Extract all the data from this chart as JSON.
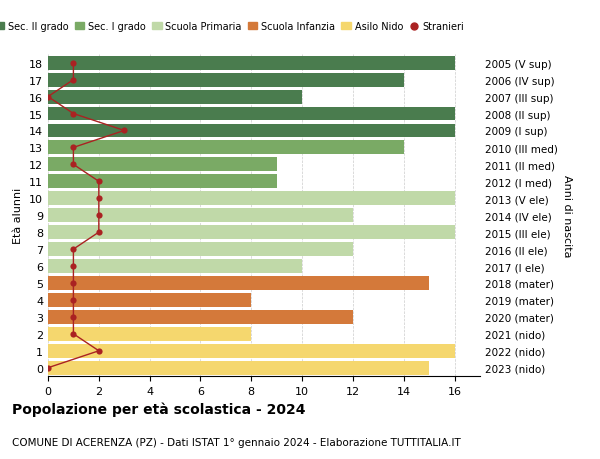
{
  "rows": [
    {
      "age": 18,
      "year": "2005 (V sup)",
      "value": 16,
      "color": "#4a7c4e",
      "stranieri": 1
    },
    {
      "age": 17,
      "year": "2006 (IV sup)",
      "value": 14,
      "color": "#4a7c4e",
      "stranieri": 1
    },
    {
      "age": 16,
      "year": "2007 (III sup)",
      "value": 10,
      "color": "#4a7c4e",
      "stranieri": 0
    },
    {
      "age": 15,
      "year": "2008 (II sup)",
      "value": 16,
      "color": "#4a7c4e",
      "stranieri": 1
    },
    {
      "age": 14,
      "year": "2009 (I sup)",
      "value": 16,
      "color": "#4a7c4e",
      "stranieri": 3
    },
    {
      "age": 13,
      "year": "2010 (III med)",
      "value": 14,
      "color": "#7aaa65",
      "stranieri": 1
    },
    {
      "age": 12,
      "year": "2011 (II med)",
      "value": 9,
      "color": "#7aaa65",
      "stranieri": 1
    },
    {
      "age": 11,
      "year": "2012 (I med)",
      "value": 9,
      "color": "#7aaa65",
      "stranieri": 2
    },
    {
      "age": 10,
      "year": "2013 (V ele)",
      "value": 16,
      "color": "#c0d9a8",
      "stranieri": 2
    },
    {
      "age": 9,
      "year": "2014 (IV ele)",
      "value": 12,
      "color": "#c0d9a8",
      "stranieri": 2
    },
    {
      "age": 8,
      "year": "2015 (III ele)",
      "value": 16,
      "color": "#c0d9a8",
      "stranieri": 2
    },
    {
      "age": 7,
      "year": "2016 (II ele)",
      "value": 12,
      "color": "#c0d9a8",
      "stranieri": 1
    },
    {
      "age": 6,
      "year": "2017 (I ele)",
      "value": 10,
      "color": "#c0d9a8",
      "stranieri": 1
    },
    {
      "age": 5,
      "year": "2018 (mater)",
      "value": 15,
      "color": "#d4793a",
      "stranieri": 1
    },
    {
      "age": 4,
      "year": "2019 (mater)",
      "value": 8,
      "color": "#d4793a",
      "stranieri": 1
    },
    {
      "age": 3,
      "year": "2020 (mater)",
      "value": 12,
      "color": "#d4793a",
      "stranieri": 1
    },
    {
      "age": 2,
      "year": "2021 (nido)",
      "value": 8,
      "color": "#f5d76e",
      "stranieri": 1
    },
    {
      "age": 1,
      "year": "2022 (nido)",
      "value": 16,
      "color": "#f5d76e",
      "stranieri": 2
    },
    {
      "age": 0,
      "year": "2023 (nido)",
      "value": 15,
      "color": "#f5d76e",
      "stranieri": 0
    }
  ],
  "legend_labels": [
    "Sec. II grado",
    "Sec. I grado",
    "Scuola Primaria",
    "Scuola Infanzia",
    "Asilo Nido",
    "Stranieri"
  ],
  "legend_colors": [
    "#4a7c4e",
    "#7aaa65",
    "#c0d9a8",
    "#d4793a",
    "#f5d76e",
    "#aa2222"
  ],
  "title": "Popolazione per età scolastica - 2024",
  "subtitle": "COMUNE DI ACERENZA (PZ) - Dati ISTAT 1° gennaio 2024 - Elaborazione TUTTITALIA.IT",
  "ylabel": "Età alunni",
  "right_label": "Anni di nascita",
  "xlim": [
    0,
    17
  ],
  "xticks": [
    0,
    2,
    4,
    6,
    8,
    10,
    12,
    14,
    16
  ],
  "bg_color": "#ffffff",
  "grid_color": "#cccccc",
  "stranieri_color": "#aa2222"
}
